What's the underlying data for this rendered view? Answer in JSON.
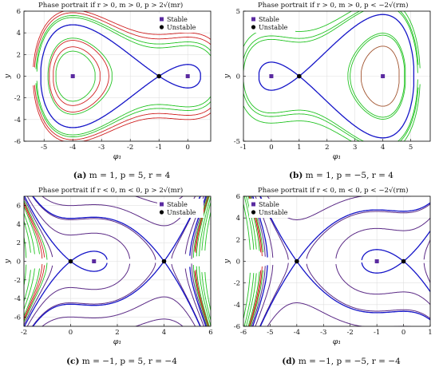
{
  "chart_data": [
    {
      "type": "line",
      "title": "Phase portrait if r > 0, m > 0, p > 2√(mr)",
      "caption_letter": "(a)",
      "caption_text": "m = 1, p = 5, r = 4",
      "xlabel": "φ₁",
      "ylabel": "y",
      "params": {
        "m": 1,
        "p": 5,
        "r": 4
      },
      "xlim": [
        -5.7,
        0.8
      ],
      "ylim": [
        -6,
        6
      ],
      "xticks": [
        -5,
        -4,
        -3,
        -2,
        -1,
        0
      ],
      "yticks": [
        -6,
        -4,
        -2,
        0,
        2,
        4,
        6
      ],
      "legend_position": "top-right",
      "legend": [
        {
          "label": "Stable",
          "marker": "square"
        },
        {
          "label": "Unstable",
          "marker": "circle"
        }
      ],
      "stable_points": [
        [
          -4,
          0
        ],
        [
          0,
          0
        ]
      ],
      "unstable_points": [
        [
          -1,
          0
        ]
      ],
      "energy_levels_green": [
        -24,
        -20,
        -16,
        -12,
        -8,
        -4.5,
        4,
        5
      ],
      "energy_levels_red": [
        -7,
        -5.2,
        6.5,
        8
      ],
      "grid": true
    },
    {
      "type": "line",
      "title": "Phase portrait if r > 0, m > 0, p < −2√(rm)",
      "caption_letter": "(b)",
      "caption_text": "m = 1, p = −5, r = 4",
      "xlabel": "φ₁",
      "ylabel": "y",
      "params": {
        "m": 1,
        "p": -5,
        "r": 4
      },
      "xlim": [
        -1,
        5.7
      ],
      "ylim": [
        -5,
        5
      ],
      "xticks": [
        -1,
        0,
        1,
        2,
        3,
        4,
        5
      ],
      "yticks": [
        -5,
        0,
        5
      ],
      "legend_position": "top-left",
      "legend": [
        {
          "label": "Stable",
          "marker": "square"
        },
        {
          "label": "Unstable",
          "marker": "circle"
        }
      ],
      "stable_points": [
        [
          0,
          0
        ],
        [
          4,
          0
        ]
      ],
      "unstable_points": [
        [
          1,
          0
        ]
      ],
      "energy_levels_green": [
        -5.2,
        -5.7,
        4,
        4.8,
        6.5
      ],
      "energy_levels_red": [
        -24,
        -20,
        -16,
        -12,
        -8
      ],
      "grid": true
    },
    {
      "type": "line",
      "title": "Phase portrait if r < 0, m < 0, p > 2√(mr)",
      "caption_letter": "(c)",
      "caption_text": "m = −1, p = 5, r = −4",
      "xlabel": "φ₁",
      "ylabel": "y",
      "params": {
        "m": -1,
        "p": 5,
        "r": -4
      },
      "xlim": [
        -2,
        6
      ],
      "ylim": [
        -7,
        7
      ],
      "xticks": [
        -2,
        0,
        2,
        4,
        6
      ],
      "yticks": [
        -6,
        -4,
        -2,
        0,
        2,
        4,
        6
      ],
      "legend_position": "top-right",
      "legend": [
        {
          "label": "Stable",
          "marker": "square"
        },
        {
          "label": "Unstable",
          "marker": "circle"
        }
      ],
      "stable_points": [
        [
          1,
          0
        ]
      ],
      "unstable_points": [
        [
          0,
          0
        ],
        [
          4,
          0
        ]
      ],
      "energy_levels_green": [
        -4,
        -8,
        -12,
        -16,
        -22
      ],
      "energy_levels_red": [
        -5.2,
        -6.5
      ],
      "energy_levels_purple": [
        -2,
        4,
        10,
        18,
        30,
        -45,
        -65
      ],
      "grid": true
    },
    {
      "type": "line",
      "title": "Phase portrait if r < 0, m < 0, p < −2√(rm)",
      "caption_letter": "(d)",
      "caption_text": "m = −1, p = −5, r = −4",
      "xlabel": "φ₁",
      "ylabel": "y",
      "params": {
        "m": -1,
        "p": -5,
        "r": -4
      },
      "xlim": [
        -6,
        1
      ],
      "ylim": [
        -6,
        6
      ],
      "xticks": [
        -6,
        -5,
        -4,
        -3,
        -2,
        -1,
        0,
        1
      ],
      "yticks": [
        -6,
        -4,
        -2,
        0,
        2,
        4,
        6
      ],
      "legend_position": "top-left",
      "legend": [
        {
          "label": "Stable",
          "marker": "square"
        },
        {
          "label": "Unstable",
          "marker": "circle"
        }
      ],
      "stable_points": [
        [
          -1,
          0
        ]
      ],
      "unstable_points": [
        [
          -4,
          0
        ],
        [
          0,
          0
        ]
      ],
      "energy_levels_green": [
        -4,
        -8,
        -12,
        -16,
        -22
      ],
      "energy_levels_red": [
        -5.2,
        -6.5
      ],
      "energy_levels_purple": [
        -2,
        4,
        10,
        18,
        30,
        -45,
        -65
      ],
      "grid": true
    }
  ],
  "colors": {
    "stable_marker": "#5a2aa0",
    "unstable_marker": "#000000",
    "green": "#22c322",
    "red": "#d02020",
    "brown": "#a0522d",
    "purple": "#5b2a86",
    "blue": "#1515c8",
    "grid": "#e0e0e0"
  }
}
